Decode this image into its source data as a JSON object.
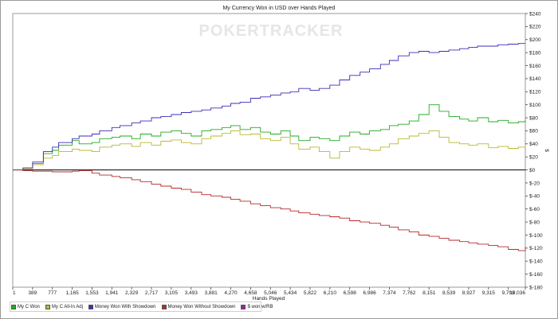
{
  "chart_data": {
    "type": "line",
    "title": "My Currency Won in USD over Hands Played",
    "xlabel": "Hands Played",
    "ylabel": "$",
    "watermark": "POKERTRACKER",
    "xlim": [
      1,
      10036
    ],
    "ylim": [
      -180,
      240
    ],
    "x_ticks": [
      1,
      389,
      777,
      1165,
      1553,
      1941,
      2329,
      2717,
      3105,
      3493,
      3881,
      4270,
      4658,
      5046,
      5434,
      5822,
      6210,
      6598,
      6986,
      7374,
      7762,
      8151,
      8539,
      8927,
      9315,
      9703,
      10036
    ],
    "x_tick_labels": [
      "1",
      "389",
      "777",
      "1,165",
      "1,553",
      "1,941",
      "2,329",
      "2,717",
      "3,105",
      "3,493",
      "3,881",
      "4,270",
      "4,658",
      "5,046",
      "5,434",
      "5,822",
      "6,210",
      "6,598",
      "6,986",
      "7,374",
      "7,762",
      "8,151",
      "8,539",
      "8,927",
      "9,315",
      "9,703",
      "10,036"
    ],
    "y_ticks": [
      240,
      220,
      200,
      180,
      160,
      140,
      120,
      100,
      80,
      60,
      40,
      20,
      0,
      -20,
      -40,
      -60,
      -80,
      -100,
      -120,
      -140,
      -160,
      -180
    ],
    "y_tick_labels": [
      "$240",
      "$220",
      "$200",
      "$180",
      "$160",
      "$140",
      "$120",
      "$100",
      "$80",
      "$60",
      "$40",
      "$20",
      "$0",
      "$-20",
      "$-40",
      "$-60",
      "$-80",
      "$-100",
      "$-120",
      "$-140",
      "$-160",
      "$-180"
    ],
    "grid": false,
    "legend_position": "bottom-left",
    "series": [
      {
        "name": "My C Won",
        "color": "#22aa22",
        "x": [
          1,
          200,
          389,
          600,
          777,
          900,
          1165,
          1300,
          1553,
          1700,
          1941,
          2100,
          2329,
          2500,
          2717,
          2900,
          3105,
          3300,
          3493,
          3700,
          3881,
          4100,
          4270,
          4450,
          4658,
          4850,
          5046,
          5250,
          5434,
          5600,
          5822,
          6000,
          6210,
          6400,
          6598,
          6800,
          6986,
          7200,
          7374,
          7550,
          7762,
          7950,
          8151,
          8350,
          8539,
          8750,
          8927,
          9100,
          9315,
          9500,
          9703,
          9900,
          10036
        ],
        "values": [
          0,
          2,
          10,
          25,
          30,
          38,
          45,
          40,
          42,
          48,
          50,
          52,
          48,
          55,
          52,
          58,
          60,
          56,
          52,
          60,
          62,
          65,
          68,
          62,
          65,
          58,
          55,
          60,
          52,
          45,
          50,
          48,
          45,
          52,
          58,
          55,
          60,
          62,
          68,
          70,
          75,
          85,
          100,
          90,
          82,
          78,
          75,
          80,
          74,
          76,
          72,
          74,
          77
        ]
      },
      {
        "name": "My C All-In Adj",
        "color": "#b8b832",
        "x": [
          1,
          200,
          389,
          600,
          777,
          900,
          1165,
          1300,
          1553,
          1700,
          1941,
          2100,
          2329,
          2500,
          2717,
          2900,
          3105,
          3300,
          3493,
          3700,
          3881,
          4100,
          4270,
          4450,
          4658,
          4850,
          5046,
          5250,
          5434,
          5600,
          5822,
          6000,
          6210,
          6400,
          6598,
          6800,
          6986,
          7200,
          7374,
          7550,
          7762,
          7950,
          8151,
          8350,
          8539,
          8750,
          8927,
          9100,
          9315,
          9500,
          9703,
          9900,
          10036
        ],
        "values": [
          0,
          2,
          8,
          18,
          22,
          28,
          32,
          30,
          28,
          35,
          38,
          40,
          36,
          42,
          38,
          44,
          46,
          42,
          40,
          48,
          52,
          56,
          60,
          54,
          55,
          48,
          45,
          50,
          40,
          32,
          35,
          28,
          18,
          28,
          35,
          32,
          30,
          35,
          40,
          48,
          52,
          56,
          60,
          50,
          42,
          40,
          38,
          40,
          34,
          36,
          33,
          35,
          38
        ]
      },
      {
        "name": "Money Won With Showdown",
        "color": "#3a2fb8",
        "x": [
          1,
          200,
          389,
          600,
          777,
          900,
          1165,
          1300,
          1553,
          1700,
          1941,
          2100,
          2329,
          2500,
          2717,
          2900,
          3105,
          3300,
          3493,
          3700,
          3881,
          4100,
          4270,
          4450,
          4658,
          4850,
          5046,
          5250,
          5434,
          5600,
          5822,
          6000,
          6210,
          6400,
          6598,
          6800,
          6986,
          7200,
          7374,
          7550,
          7762,
          7950,
          8151,
          8350,
          8539,
          8750,
          8927,
          9100,
          9315,
          9500,
          9703,
          9900,
          10036
        ],
        "values": [
          0,
          3,
          12,
          28,
          35,
          42,
          48,
          52,
          55,
          60,
          65,
          68,
          72,
          75,
          80,
          82,
          85,
          88,
          90,
          92,
          95,
          98,
          102,
          104,
          110,
          112,
          115,
          118,
          120,
          125,
          122,
          125,
          130,
          138,
          145,
          150,
          155,
          162,
          168,
          175,
          180,
          182,
          180,
          182,
          184,
          186,
          188,
          190,
          190,
          192,
          193,
          194,
          194
        ]
      },
      {
        "name": "Money Won Without Showdown",
        "color": "#b82828",
        "x": [
          1,
          200,
          389,
          600,
          777,
          900,
          1165,
          1300,
          1553,
          1700,
          1941,
          2100,
          2329,
          2500,
          2717,
          2900,
          3105,
          3300,
          3493,
          3700,
          3881,
          4100,
          4270,
          4450,
          4658,
          4850,
          5046,
          5250,
          5434,
          5600,
          5822,
          6000,
          6210,
          6400,
          6598,
          6800,
          6986,
          7200,
          7374,
          7550,
          7762,
          7950,
          8151,
          8350,
          8539,
          8750,
          8927,
          9100,
          9315,
          9500,
          9703,
          9900,
          10036
        ],
        "values": [
          0,
          -1,
          -2,
          -2,
          -3,
          -3,
          -2,
          -1,
          -5,
          -8,
          -10,
          -12,
          -15,
          -18,
          -22,
          -25,
          -28,
          -30,
          -34,
          -38,
          -40,
          -42,
          -45,
          -48,
          -52,
          -55,
          -58,
          -60,
          -63,
          -66,
          -68,
          -70,
          -72,
          -74,
          -78,
          -80,
          -82,
          -85,
          -88,
          -92,
          -95,
          -100,
          -102,
          -105,
          -108,
          -110,
          -112,
          -114,
          -116,
          -118,
          -122,
          -124,
          -118
        ]
      },
      {
        "name": "$ won w/RB",
        "color": "#a020a0",
        "x": [],
        "values": []
      }
    ]
  }
}
